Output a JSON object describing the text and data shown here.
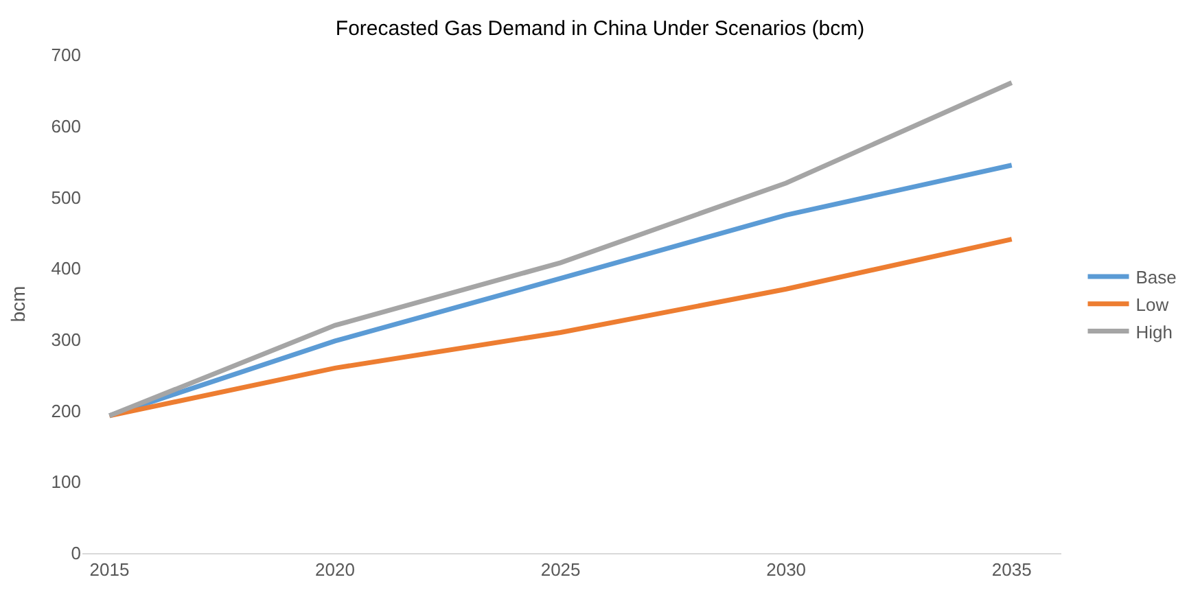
{
  "chart_data": {
    "type": "line",
    "title": "Forecasted Gas Demand in China Under Scenarios (bcm)",
    "ylabel": "bcm",
    "x": [
      2015,
      2020,
      2025,
      2030,
      2035
    ],
    "series": [
      {
        "name": "Base",
        "color": "#5b9bd5",
        "values": [
          193,
          298,
          386,
          475,
          545
        ]
      },
      {
        "name": "Low",
        "color": "#ed7d31",
        "values": [
          193,
          260,
          310,
          371,
          441
        ]
      },
      {
        "name": "High",
        "color": "#a5a5a5",
        "values": [
          193,
          320,
          408,
          520,
          661
        ]
      }
    ],
    "xlim": [
      2014.4,
      2036.1
    ],
    "xticks": [
      2015,
      2020,
      2025,
      2030,
      2035
    ],
    "ylim": [
      0,
      700
    ],
    "yticks": [
      0,
      100,
      200,
      300,
      400,
      500,
      600,
      700
    ],
    "legend": "right",
    "marker": "none",
    "line_style": "solid"
  }
}
